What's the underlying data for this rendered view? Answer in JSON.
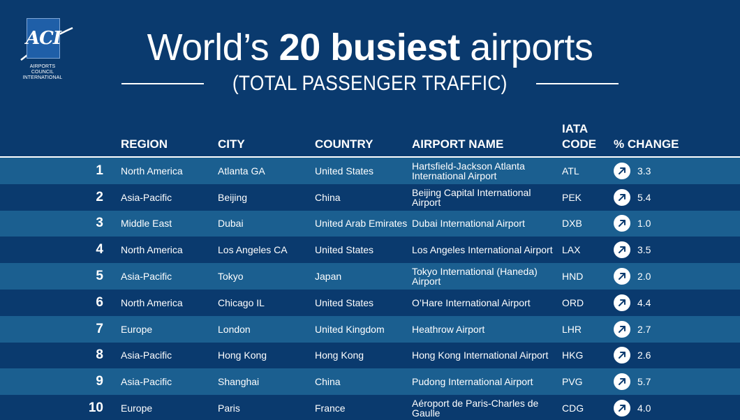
{
  "logo": {
    "letters": "ACI",
    "line1": "AIRPORTS COUNCIL",
    "line2": "INTERNATIONAL"
  },
  "title": {
    "pre": "World’s ",
    "bold": "20 busiest",
    "post": " airports",
    "subtitle": "(TOTAL PASSENGER TRAFFIC)"
  },
  "table": {
    "headers": {
      "region": "REGION",
      "city": "CITY",
      "country": "COUNTRY",
      "airport": "AIRPORT NAME",
      "code_line1": "IATA",
      "code_line2": "CODE",
      "change": "% CHANGE"
    },
    "rows": [
      {
        "rank": "1",
        "region": "North America",
        "city": "Atlanta GA",
        "country": "United States",
        "airport": "Hartsfield-Jackson Atlanta International Airport",
        "code": "ATL",
        "change": "3.3"
      },
      {
        "rank": "2",
        "region": "Asia-Pacific",
        "city": "Beijing",
        "country": "China",
        "airport": "Beijing Capital International Airport",
        "code": "PEK",
        "change": "5.4"
      },
      {
        "rank": "3",
        "region": "Middle East",
        "city": "Dubai",
        "country": "United Arab Emirates",
        "airport": "Dubai International Airport",
        "code": "DXB",
        "change": "1.0"
      },
      {
        "rank": "4",
        "region": "North America",
        "city": "Los Angeles CA",
        "country": "United States",
        "airport": "Los Angeles International Airport",
        "code": "LAX",
        "change": "3.5"
      },
      {
        "rank": "5",
        "region": "Asia-Pacific",
        "city": "Tokyo",
        "country": "Japan",
        "airport": "Tokyo International (Haneda) Airport",
        "code": "HND",
        "change": "2.0"
      },
      {
        "rank": "6",
        "region": "North America",
        "city": "Chicago IL",
        "country": "United States",
        "airport": "O’Hare International Airport",
        "code": "ORD",
        "change": "4.4"
      },
      {
        "rank": "7",
        "region": "Europe",
        "city": "London",
        "country": "United Kingdom",
        "airport": "Heathrow Airport",
        "code": "LHR",
        "change": "2.7"
      },
      {
        "rank": "8",
        "region": "Asia-Pacific",
        "city": "Hong Kong",
        "country": "Hong Kong",
        "airport": "Hong Kong International Airport",
        "code": "HKG",
        "change": "2.6"
      },
      {
        "rank": "9",
        "region": "Asia-Pacific",
        "city": "Shanghai",
        "country": "China",
        "airport": "Pudong International Airport",
        "code": "PVG",
        "change": "5.7"
      },
      {
        "rank": "10",
        "region": "Europe",
        "city": "Paris",
        "country": "France",
        "airport": "Aéroport de Paris-Charles de Gaulle",
        "code": "CDG",
        "change": "4.0"
      }
    ]
  },
  "icons": {
    "change": "arrow-up-right-icon"
  },
  "colors": {
    "background": "#0a3a6e",
    "row_light": "#1b5f90",
    "text": "#ffffff"
  }
}
